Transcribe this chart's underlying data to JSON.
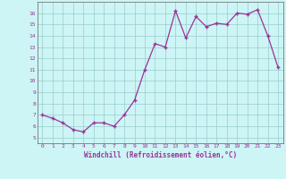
{
  "x_data": [
    0,
    1,
    2,
    3,
    4,
    5,
    6,
    7,
    8,
    9,
    10,
    11,
    12,
    13,
    14,
    15,
    16,
    17,
    18,
    19,
    20,
    21,
    22,
    23
  ],
  "y_data": [
    7.0,
    6.7,
    6.3,
    5.7,
    5.5,
    6.3,
    6.3,
    6.0,
    7.0,
    8.3,
    11.0,
    13.3,
    13.0,
    16.2,
    13.8,
    15.7,
    14.8,
    15.1,
    15.0,
    16.0,
    15.9,
    16.3,
    14.0,
    11.2
  ],
  "xlabel": "Windchill (Refroidissement éolien,°C)",
  "ylim": [
    4.5,
    17.0
  ],
  "yticks": [
    5,
    6,
    7,
    8,
    9,
    10,
    11,
    12,
    13,
    14,
    15,
    16
  ],
  "xlim": [
    -0.5,
    23.5
  ],
  "line_color": "#993399",
  "marker_color": "#993399",
  "bg_color": "#cdf5f5",
  "grid_color": "#99cccc",
  "label_color": "#993399",
  "tick_color": "#993399",
  "spine_color": "#777777"
}
